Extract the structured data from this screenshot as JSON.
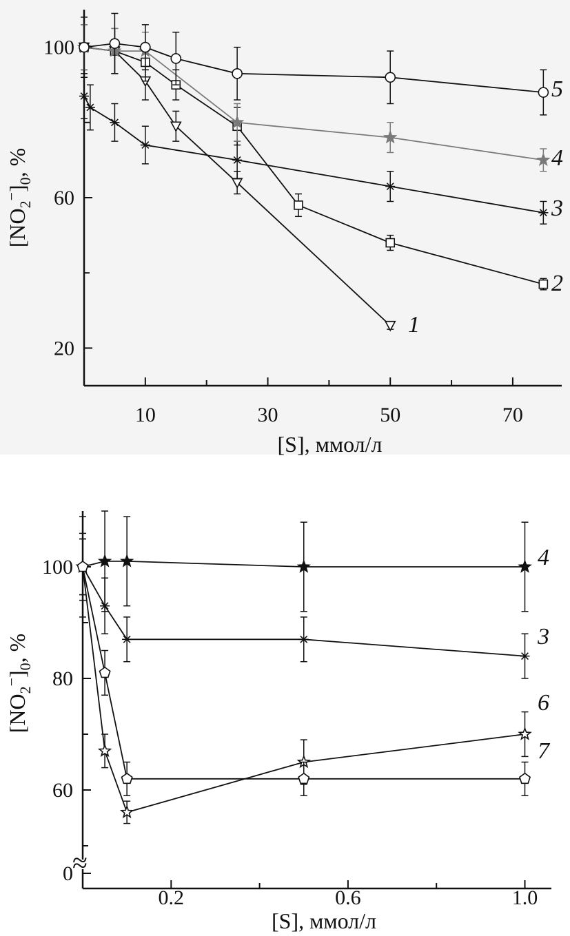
{
  "chart_data": [
    {
      "type": "line",
      "xlabel": "[S], ммол/л",
      "ylabel_parts": {
        "a": "[NO",
        "sub1": "2",
        "sup": "−",
        "b": "]",
        "sub2": "0",
        "c": ", %"
      },
      "xlim": [
        0,
        78
      ],
      "ylim": [
        10,
        110
      ],
      "x_ticks": [
        10,
        30,
        50,
        70
      ],
      "x_ticks_unlabeled": [
        20,
        40,
        60
      ],
      "y_ticks": [
        20,
        60,
        100
      ],
      "y_ticks_unlabeled": [
        40,
        80
      ],
      "series": [
        {
          "name": "1",
          "marker": "triangle-down",
          "color": "#111111",
          "x": [
            0,
            5,
            10,
            15,
            25,
            50
          ],
          "y": [
            100,
            99,
            91,
            79,
            64,
            26
          ],
          "err": [
            6,
            6,
            5,
            4,
            3,
            1
          ]
        },
        {
          "name": "2",
          "marker": "square",
          "color": "#111111",
          "x": [
            0,
            5,
            10,
            15,
            25,
            35,
            50,
            75
          ],
          "y": [
            100,
            99,
            96,
            90,
            79,
            58,
            48,
            37
          ],
          "err": [
            6,
            6,
            5,
            4,
            5,
            3,
            2,
            1.5
          ]
        },
        {
          "name": "3",
          "marker": "asterisk",
          "color": "#111111",
          "x": [
            0,
            1,
            5,
            10,
            25,
            50,
            75
          ],
          "y": [
            87,
            84,
            80,
            74,
            70,
            63,
            56
          ],
          "err": [
            6,
            6,
            5,
            5,
            5,
            4,
            3
          ]
        },
        {
          "name": "4",
          "marker": "star-filled",
          "color": "#7a7a7a",
          "x": [
            0,
            5,
            10,
            25,
            50,
            75
          ],
          "y": [
            100,
            99,
            99,
            80,
            76,
            70
          ],
          "err": [
            6,
            6,
            5,
            5,
            4,
            3
          ]
        },
        {
          "name": "5",
          "marker": "circle",
          "color": "#111111",
          "x": [
            0,
            5,
            10,
            15,
            25,
            50,
            75
          ],
          "y": [
            100,
            101,
            100,
            97,
            93,
            92,
            88
          ],
          "err": [
            8,
            8,
            6,
            7,
            7,
            7,
            6
          ]
        }
      ]
    },
    {
      "type": "line",
      "xlabel": "[S], ммол/л",
      "ylabel_parts": {
        "a": "[NO",
        "sub1": "2",
        "sup": "−",
        "b": "]",
        "sub2": "0",
        "c": ", %"
      },
      "xlim": [
        0,
        1.06
      ],
      "ylim": [
        0,
        110
      ],
      "x_ticks": [
        0.2,
        0.6,
        1.0
      ],
      "x_ticks_labels": [
        "0.2",
        "0.6",
        "1.0"
      ],
      "x_ticks_unlabeled": [
        0.4,
        0.8
      ],
      "y_ticks": [
        0,
        60,
        80,
        100
      ],
      "y_ticks_unlabeled": [
        50,
        70,
        90
      ],
      "axis_break_symbol": "≈",
      "series": [
        {
          "name": "4",
          "marker": "star-filled",
          "color": "#111111",
          "x": [
            0,
            0.05,
            0.1,
            0.5,
            1.0
          ],
          "y": [
            100,
            101,
            101,
            100,
            100
          ],
          "err": [
            9,
            9,
            8,
            8,
            8
          ]
        },
        {
          "name": "3",
          "marker": "asterisk",
          "color": "#111111",
          "x": [
            0,
            0.05,
            0.1,
            0.5,
            1.0
          ],
          "y": [
            100,
            93,
            87,
            87,
            84
          ],
          "err": [
            6,
            5,
            4,
            4,
            4
          ]
        },
        {
          "name": "6",
          "marker": "star-open",
          "color": "#111111",
          "x": [
            0,
            0.05,
            0.1,
            0.5,
            1.0
          ],
          "y": [
            100,
            67,
            56,
            65,
            70
          ],
          "err": [
            5,
            3,
            2,
            4,
            4
          ]
        },
        {
          "name": "7",
          "marker": "pentagon",
          "color": "#111111",
          "x": [
            0,
            0.05,
            0.1,
            0.5,
            1.0
          ],
          "y": [
            100,
            81,
            62,
            62,
            62
          ],
          "err": [
            5,
            4,
            3,
            3,
            3
          ]
        }
      ]
    }
  ]
}
